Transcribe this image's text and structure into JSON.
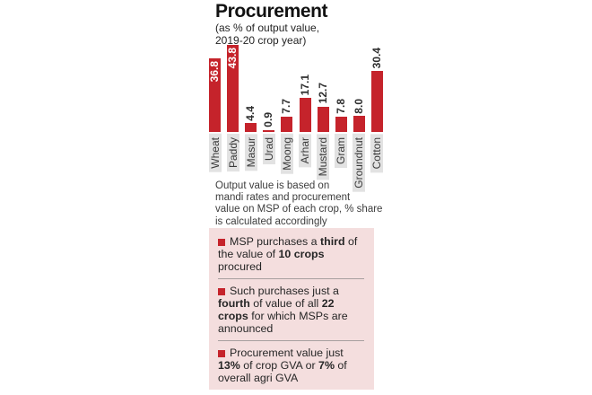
{
  "header": {
    "title": "Procurement",
    "subtitle_line1": "(as % of output value,",
    "subtitle_line2": "2019-20 crop year)"
  },
  "chart_data": {
    "type": "bar",
    "title": "Procurement",
    "subtitle": "(as % of output value, 2019-20 crop year)",
    "categories": [
      "Wheat",
      "Paddy",
      "Masur",
      "Urad",
      "Moong",
      "Arhar",
      "Mustard",
      "Gram",
      "Groundnut",
      "Cotton"
    ],
    "values": [
      36.8,
      43.8,
      4.4,
      0.9,
      7.7,
      17.1,
      12.7,
      7.8,
      8.0,
      30.4
    ],
    "unit": "%",
    "xlabel": "",
    "ylabel": "",
    "ylim": [
      0,
      45
    ],
    "grid": false,
    "legend": false,
    "bar_color": "#c5232b",
    "value_label_rotation": -90,
    "category_label_rotation": -90,
    "category_label_bg": "#e2e2e2",
    "inside_value_labels": [
      "Wheat",
      "Paddy"
    ]
  },
  "footnote": {
    "lines": [
      "Output value is based on",
      "mandi rates and procurement",
      "value on MSP of each crop, % share",
      "is calculated accordingly"
    ]
  },
  "insights": {
    "bg_color": "#f4dede",
    "bullet_color": "#c5232b",
    "items": [
      {
        "segments": [
          {
            "text": "MSP purchases a ",
            "bold": false
          },
          {
            "text": "third",
            "bold": true
          },
          {
            "text": " of the value of ",
            "bold": false
          },
          {
            "text": "10 crops",
            "bold": true
          },
          {
            "text": " procured",
            "bold": false
          }
        ]
      },
      {
        "segments": [
          {
            "text": "Such purchases just a ",
            "bold": false
          },
          {
            "text": "fourth",
            "bold": true
          },
          {
            "text": " of value of all ",
            "bold": false
          },
          {
            "text": "22 crops",
            "bold": true
          },
          {
            "text": " for which MSPs are announced",
            "bold": false
          }
        ]
      },
      {
        "segments": [
          {
            "text": "Procurement value just ",
            "bold": false
          },
          {
            "text": "13%",
            "bold": true
          },
          {
            "text": " of crop GVA or ",
            "bold": false
          },
          {
            "text": "7%",
            "bold": true
          },
          {
            "text": " of overall agri GVA",
            "bold": false
          }
        ]
      }
    ]
  }
}
